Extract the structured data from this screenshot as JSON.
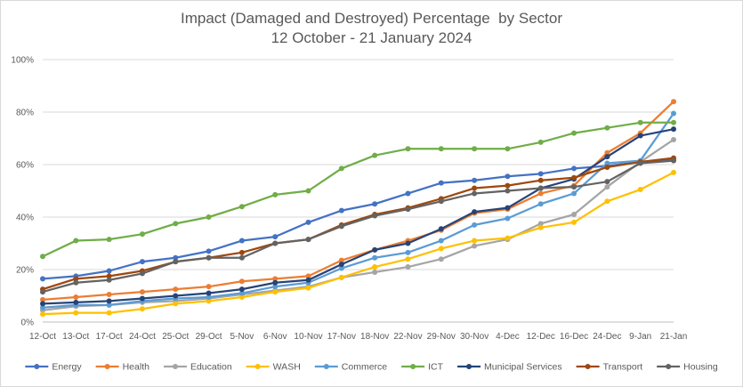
{
  "chart_data": {
    "type": "line",
    "title": "Impact (Damaged and Destroyed) Percentage  by Sector",
    "subtitle": "12 October - 21 January 2024",
    "xlabel": "",
    "ylabel": "",
    "ylim": [
      0,
      100
    ],
    "yticks": [
      "0%",
      "20%",
      "40%",
      "60%",
      "80%",
      "100%"
    ],
    "grid": true,
    "legend_position": "bottom",
    "categories": [
      "12-Oct",
      "13-Oct",
      "17-Oct",
      "24-Oct",
      "25-Oct",
      "29-Oct",
      "5-Nov",
      "6-Nov",
      "10-Nov",
      "17-Nov",
      "18-Nov",
      "22-Nov",
      "29-Nov",
      "30-Nov",
      "4-Dec",
      "12-Dec",
      "16-Dec",
      "24-Dec",
      "9-Jan",
      "21-Jan"
    ],
    "series": [
      {
        "name": "Energy",
        "color": "#4472c4",
        "values": [
          16.5,
          17.5,
          19.5,
          23,
          24.5,
          27,
          31,
          32.5,
          38,
          42.5,
          45,
          49,
          53,
          54,
          55.5,
          56.5,
          58.5,
          59.5,
          61,
          62
        ]
      },
      {
        "name": "Health",
        "color": "#ed7d31",
        "values": [
          8.5,
          9.5,
          10.5,
          11.5,
          12.5,
          13.5,
          15.5,
          16.5,
          17.5,
          23.5,
          27.5,
          31,
          35,
          41.5,
          43,
          49,
          52,
          64.5,
          72,
          84
        ]
      },
      {
        "name": "Education",
        "color": "#a5a5a5",
        "values": [
          4.5,
          6,
          6.5,
          7.5,
          8,
          9,
          10.5,
          12,
          13.5,
          17,
          19,
          21,
          24,
          29,
          31.5,
          37.5,
          41,
          51.5,
          61,
          69.5
        ]
      },
      {
        "name": "WASH",
        "color": "#ffc000",
        "values": [
          3,
          3.5,
          3.5,
          5,
          7,
          8,
          9.5,
          11.5,
          13,
          17,
          21,
          24,
          28,
          31,
          32,
          36,
          38,
          46,
          50.5,
          57
        ]
      },
      {
        "name": "Commerce",
        "color": "#5b9bd5",
        "values": [
          5.5,
          6.5,
          6.5,
          8,
          9,
          9.5,
          11,
          13.5,
          15,
          20.5,
          24.5,
          26.5,
          31,
          37,
          39.5,
          45,
          49,
          60.5,
          61.5,
          79.5
        ]
      },
      {
        "name": "ICT",
        "color": "#70ad47",
        "values": [
          25,
          31,
          31.5,
          33.5,
          37.5,
          40,
          44,
          48.5,
          50,
          58.5,
          63.5,
          66,
          66,
          66,
          66,
          68.5,
          72,
          74,
          76,
          76
        ]
      },
      {
        "name": "Municipal Services",
        "color": "#264478",
        "values": [
          7,
          7.5,
          8,
          9,
          10,
          11,
          12.5,
          15,
          16,
          22,
          27.5,
          30,
          35.5,
          42,
          43.5,
          51,
          54.5,
          63,
          71,
          73.5
        ]
      },
      {
        "name": "Transport",
        "color": "#9e480e",
        "values": [
          12.5,
          16.5,
          17.5,
          19.5,
          23,
          24.5,
          26.5,
          30,
          31.5,
          37,
          41,
          43.5,
          47,
          51,
          52,
          54,
          55,
          59,
          61,
          62.5
        ]
      },
      {
        "name": "Housing",
        "color": "#636363",
        "values": [
          11.5,
          15,
          16,
          18.5,
          23,
          24.5,
          24.5,
          30,
          31.5,
          36.5,
          40.5,
          43,
          46,
          49,
          50,
          51,
          51.5,
          53.5,
          60.5,
          61.5
        ]
      }
    ]
  }
}
